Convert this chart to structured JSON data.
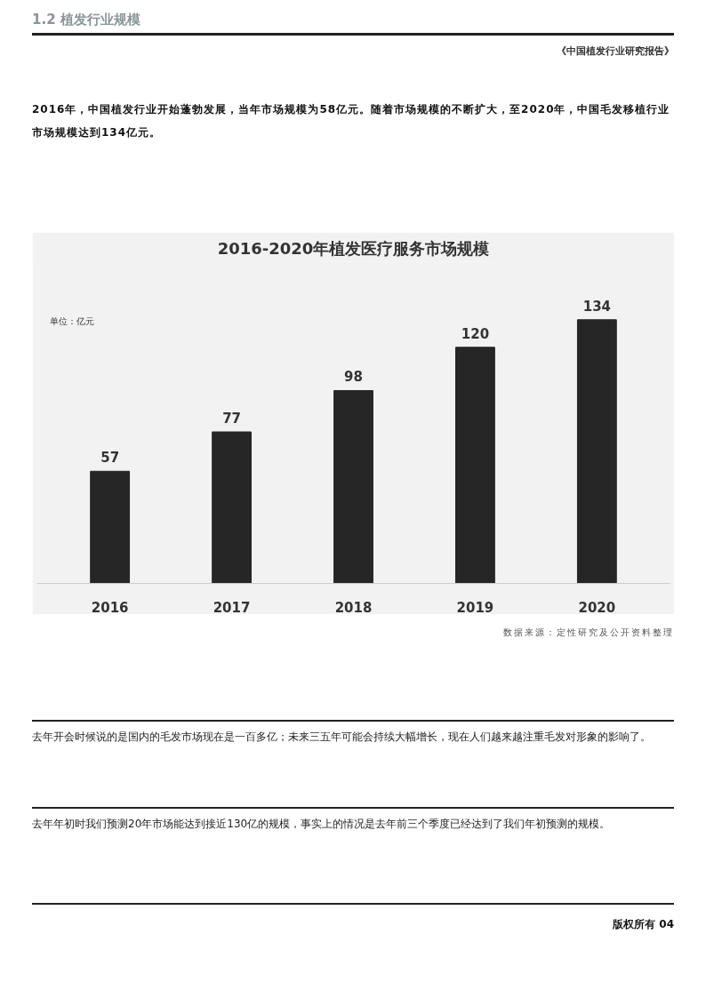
{
  "chart_data": {
    "type": "bar",
    "title": "2016-2020年植发医疗服务市场规模",
    "categories": [
      "2016",
      "2017",
      "2018",
      "2019",
      "2020"
    ],
    "values": [
      57,
      77,
      98,
      120,
      134
    ],
    "color": "#262626",
    "data_labels": true,
    "annotations": [
      "1.2 植发行业规模",
      "《中国植发行业研究报告》",
      "2016年，中国植发行业开始蓬勃发展，当年市场规模为58亿元。随着市场规模的不断扩大，至2020年，中国毛发移植行业市场规模达到134亿元。",
      "单位：亿元",
      "数据来源：定性研究及公开资料整理",
      "去年开会时候说的是国内的毛发市场现在是一百多亿；未来三五年可能会持续大幅增长，现在人们越来越注重毛发对形象的影响了。",
      "去年年初时我们预测20年市场能达到接近130亿的规模，事实上的情况是去年前三个季度已经达到了我们年初预测的规模。",
      "版权所有 04"
    ]
  }
}
